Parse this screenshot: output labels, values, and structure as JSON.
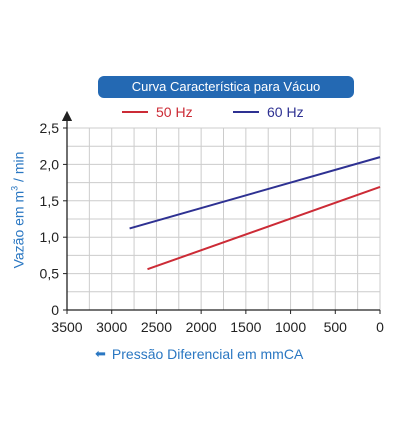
{
  "chart_data": {
    "type": "line",
    "title": "Curva Característica para Vácuo",
    "ylabel_main": "Vazão em m",
    "ylabel_sup": "3",
    "ylabel_unit": " / min",
    "xlabel": "Pressão Diferencial em mmCA",
    "x_reversed": true,
    "xlim": [
      0,
      3500
    ],
    "ylim": [
      0,
      2.5
    ],
    "xticks": [
      "3500",
      "3000",
      "2500",
      "2000",
      "1500",
      "1000",
      "500",
      "0"
    ],
    "yticks": [
      "0",
      "0,5",
      "1,0",
      "1,5",
      "2,0",
      "2,5"
    ],
    "series": [
      {
        "name": "50 Hz",
        "color": "#cc2b36",
        "x": [
          2600,
          0
        ],
        "y": [
          0.56,
          1.69
        ]
      },
      {
        "name": "60 Hz",
        "color": "#2e3192",
        "x": [
          2800,
          0
        ],
        "y": [
          1.12,
          2.1
        ]
      }
    ],
    "legend": "top",
    "grid": true
  }
}
